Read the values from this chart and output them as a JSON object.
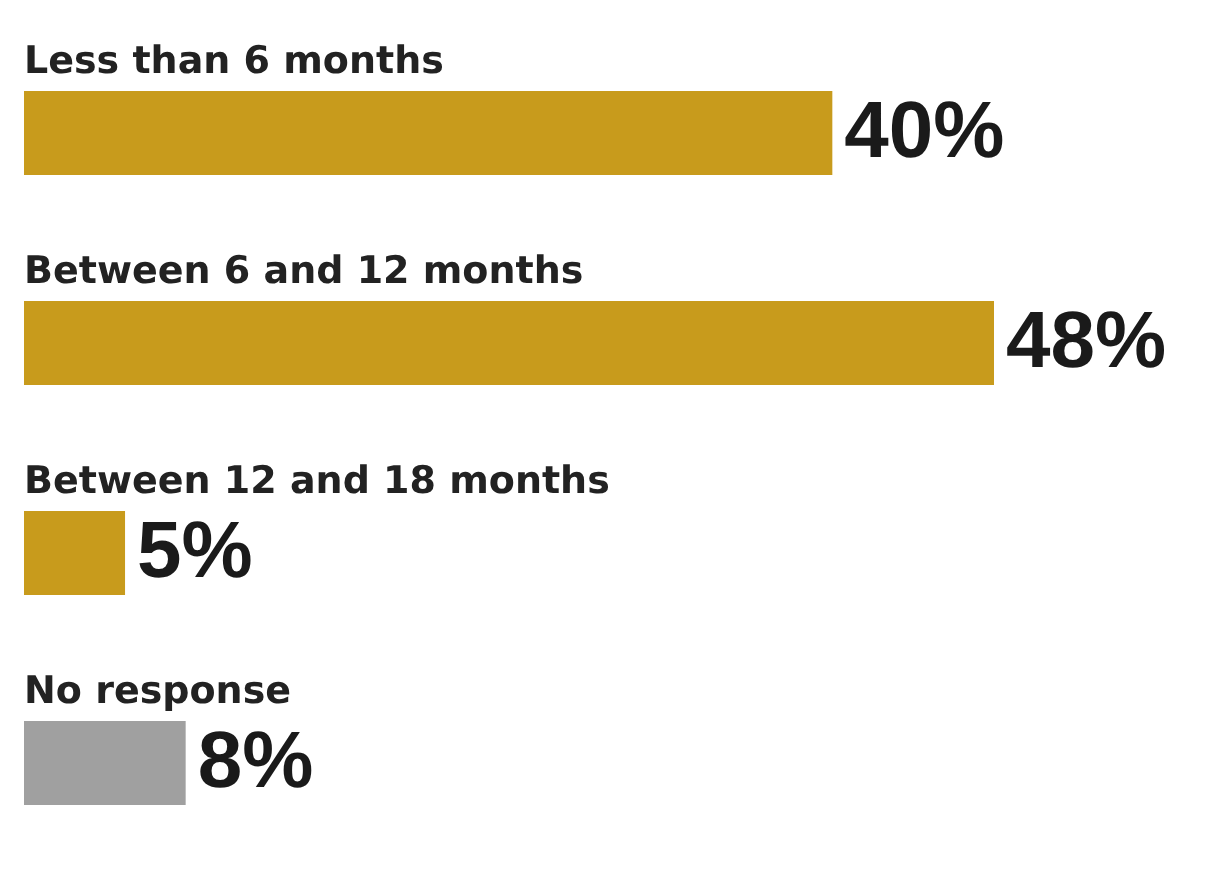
{
  "chart_data": {
    "type": "bar",
    "orientation": "horizontal",
    "categories": [
      "Less than 6 months",
      "Between 6 and 12 months",
      "Between 12 and 18 months",
      "No response"
    ],
    "values": [
      40,
      48,
      5,
      8
    ],
    "colors": [
      "#c89b1c",
      "#c89b1c",
      "#c89b1c",
      "#a0a0a0"
    ],
    "value_labels": [
      "40%",
      "48%",
      "5%",
      "8%"
    ]
  }
}
